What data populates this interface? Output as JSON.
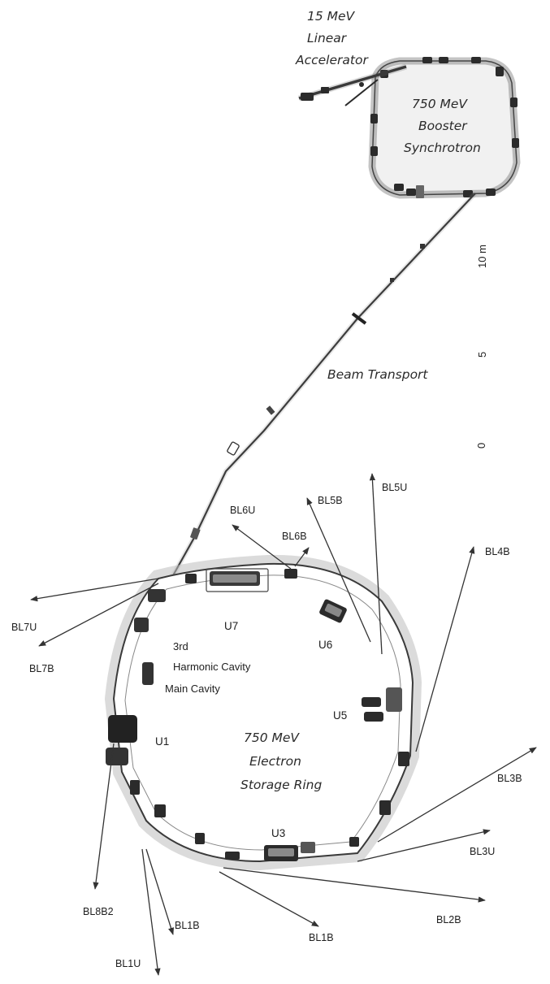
{
  "facilities": {
    "linac": [
      "15 MeV",
      "Linear",
      "Accelerator"
    ],
    "booster": [
      "750 MeV",
      "Booster",
      "Synchrotron"
    ],
    "transport": "Beam Transport",
    "ring": [
      "750 MeV",
      "Electron",
      "Storage Ring"
    ]
  },
  "cavities": {
    "third_harmonic": [
      "3rd",
      "Harmonic Cavity"
    ],
    "main": "Main Cavity"
  },
  "undulators": {
    "u1": "U1",
    "u3": "U3",
    "u5": "U5",
    "u6": "U6",
    "u7": "U7"
  },
  "beamlines": {
    "bl1b_a": "BL1B",
    "bl1b_b": "BL1B",
    "bl1u": "BL1U",
    "bl2b": "BL2B",
    "bl3b": "BL3B",
    "bl3u": "BL3U",
    "bl4b": "BL4B",
    "bl5b": "BL5B",
    "bl5u": "BL5U",
    "bl6b": "BL6B",
    "bl6u": "BL6U",
    "bl7b": "BL7B",
    "bl7u": "BL7U",
    "bl8b2": "BL8B2"
  },
  "scale_bar": {
    "ticks": [
      "0",
      "5",
      "10 m"
    ]
  },
  "colors": {
    "facility_text": "#2a2a2a",
    "ring_fill": "#ebeaea",
    "magnet": "#2b2b2b",
    "beamline": "#333333"
  }
}
